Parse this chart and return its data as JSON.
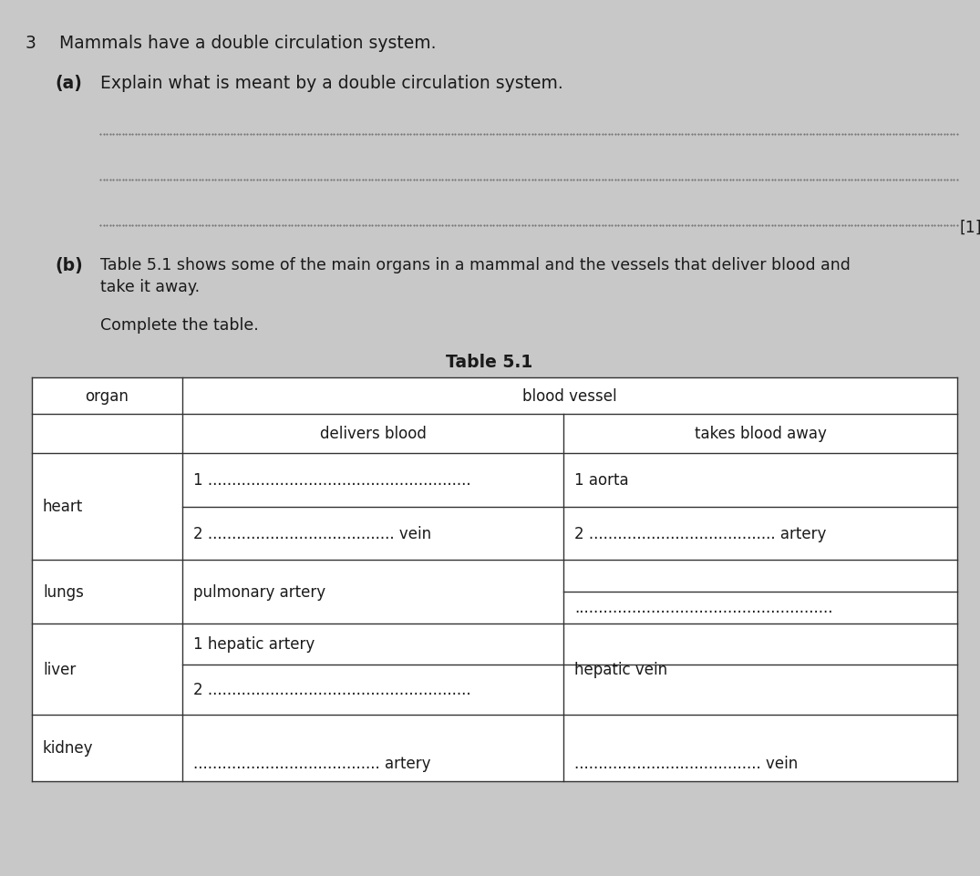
{
  "bg_color": "#c8c8c8",
  "title_number": "3",
  "title_text": "Mammals have a double circulation system.",
  "part_a_label": "(a)",
  "part_a_text": "Explain what is meant by a double circulation system.",
  "mark_label": "[1]",
  "part_b_label": "(b)",
  "part_b_line1": "Table 5.1 shows some of the main organs in a mammal and the vessels that deliver blood and",
  "part_b_line2": "take it away.",
  "complete_text": "Complete the table.",
  "table_title": "Table 5.1",
  "header_organ": "organ",
  "header_blood_vessel": "blood vessel",
  "header_delivers": "delivers blood",
  "header_takes": "takes blood away",
  "heart_label": "heart",
  "heart_del_1": "1 .......................................................",
  "heart_del_2": "2 ....................................... vein",
  "heart_tak_1": "1 aorta",
  "heart_tak_2": "2 ....................................... artery",
  "lungs_label": "lungs",
  "lungs_del": "pulmonary artery",
  "lungs_tak": "......................................................",
  "liver_label": "liver",
  "liver_del_1": "1 hepatic artery",
  "liver_del_2": "2 .......................................................",
  "liver_tak": "hepatic vein",
  "kidney_label": "kidney",
  "kidney_del": "....................................... artery",
  "kidney_tak": "....................................... vein",
  "fs_main": 13.5,
  "fs_body": 12.5,
  "fs_table": 12.0,
  "tc": "#1a1a1a",
  "line_color": "#333333",
  "dotline_color": "#666666"
}
